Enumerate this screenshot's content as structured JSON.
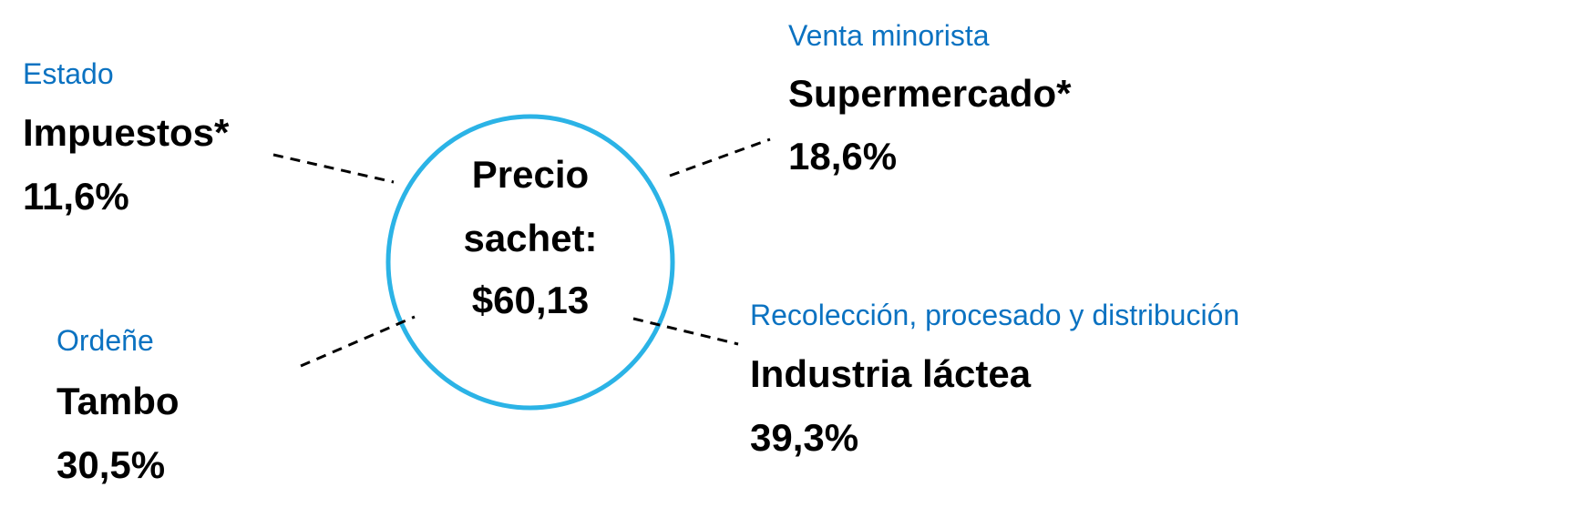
{
  "center": {
    "lines": [
      "Precio",
      "sachet:",
      "$60,13"
    ]
  },
  "nodes": [
    {
      "category": "Estado",
      "name": "Impuestos*",
      "share": "11,6%"
    },
    {
      "category": "Venta minorista",
      "name": "Supermercado*",
      "share": "18,6%"
    },
    {
      "category": "Ordeñe",
      "name": "Tambo",
      "share": "30,5%"
    },
    {
      "category": "Recolección, procesado y distribución",
      "name": "Industria láctea",
      "share": "39,3%"
    }
  ]
}
